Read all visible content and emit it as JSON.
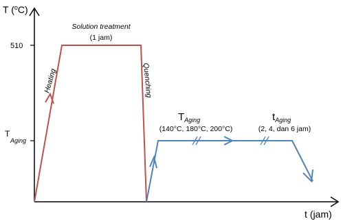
{
  "axes": {
    "y_label_prefix": "T (",
    "y_label_degree": "o",
    "y_label_suffix": "C)",
    "x_label": "t (jam)",
    "y_tick_510": "510",
    "y_tick_aging_main": "T",
    "y_tick_aging_sub": "Aging"
  },
  "solution": {
    "title": "Solution treatment",
    "duration": "(1 jam)"
  },
  "heating_label": "Heating",
  "quenching_label": "Quenching",
  "aging_temp": {
    "main": "T",
    "sub": "Aging",
    "values": "(140°C, 180°C, 200°C)"
  },
  "aging_time": {
    "main": "t",
    "sub": "Aging",
    "values": "(2, 4, dan 6 jam)"
  },
  "colors": {
    "solution_curve": "#c0504d",
    "aging_curve": "#4f81bd",
    "axis": "#000000"
  }
}
